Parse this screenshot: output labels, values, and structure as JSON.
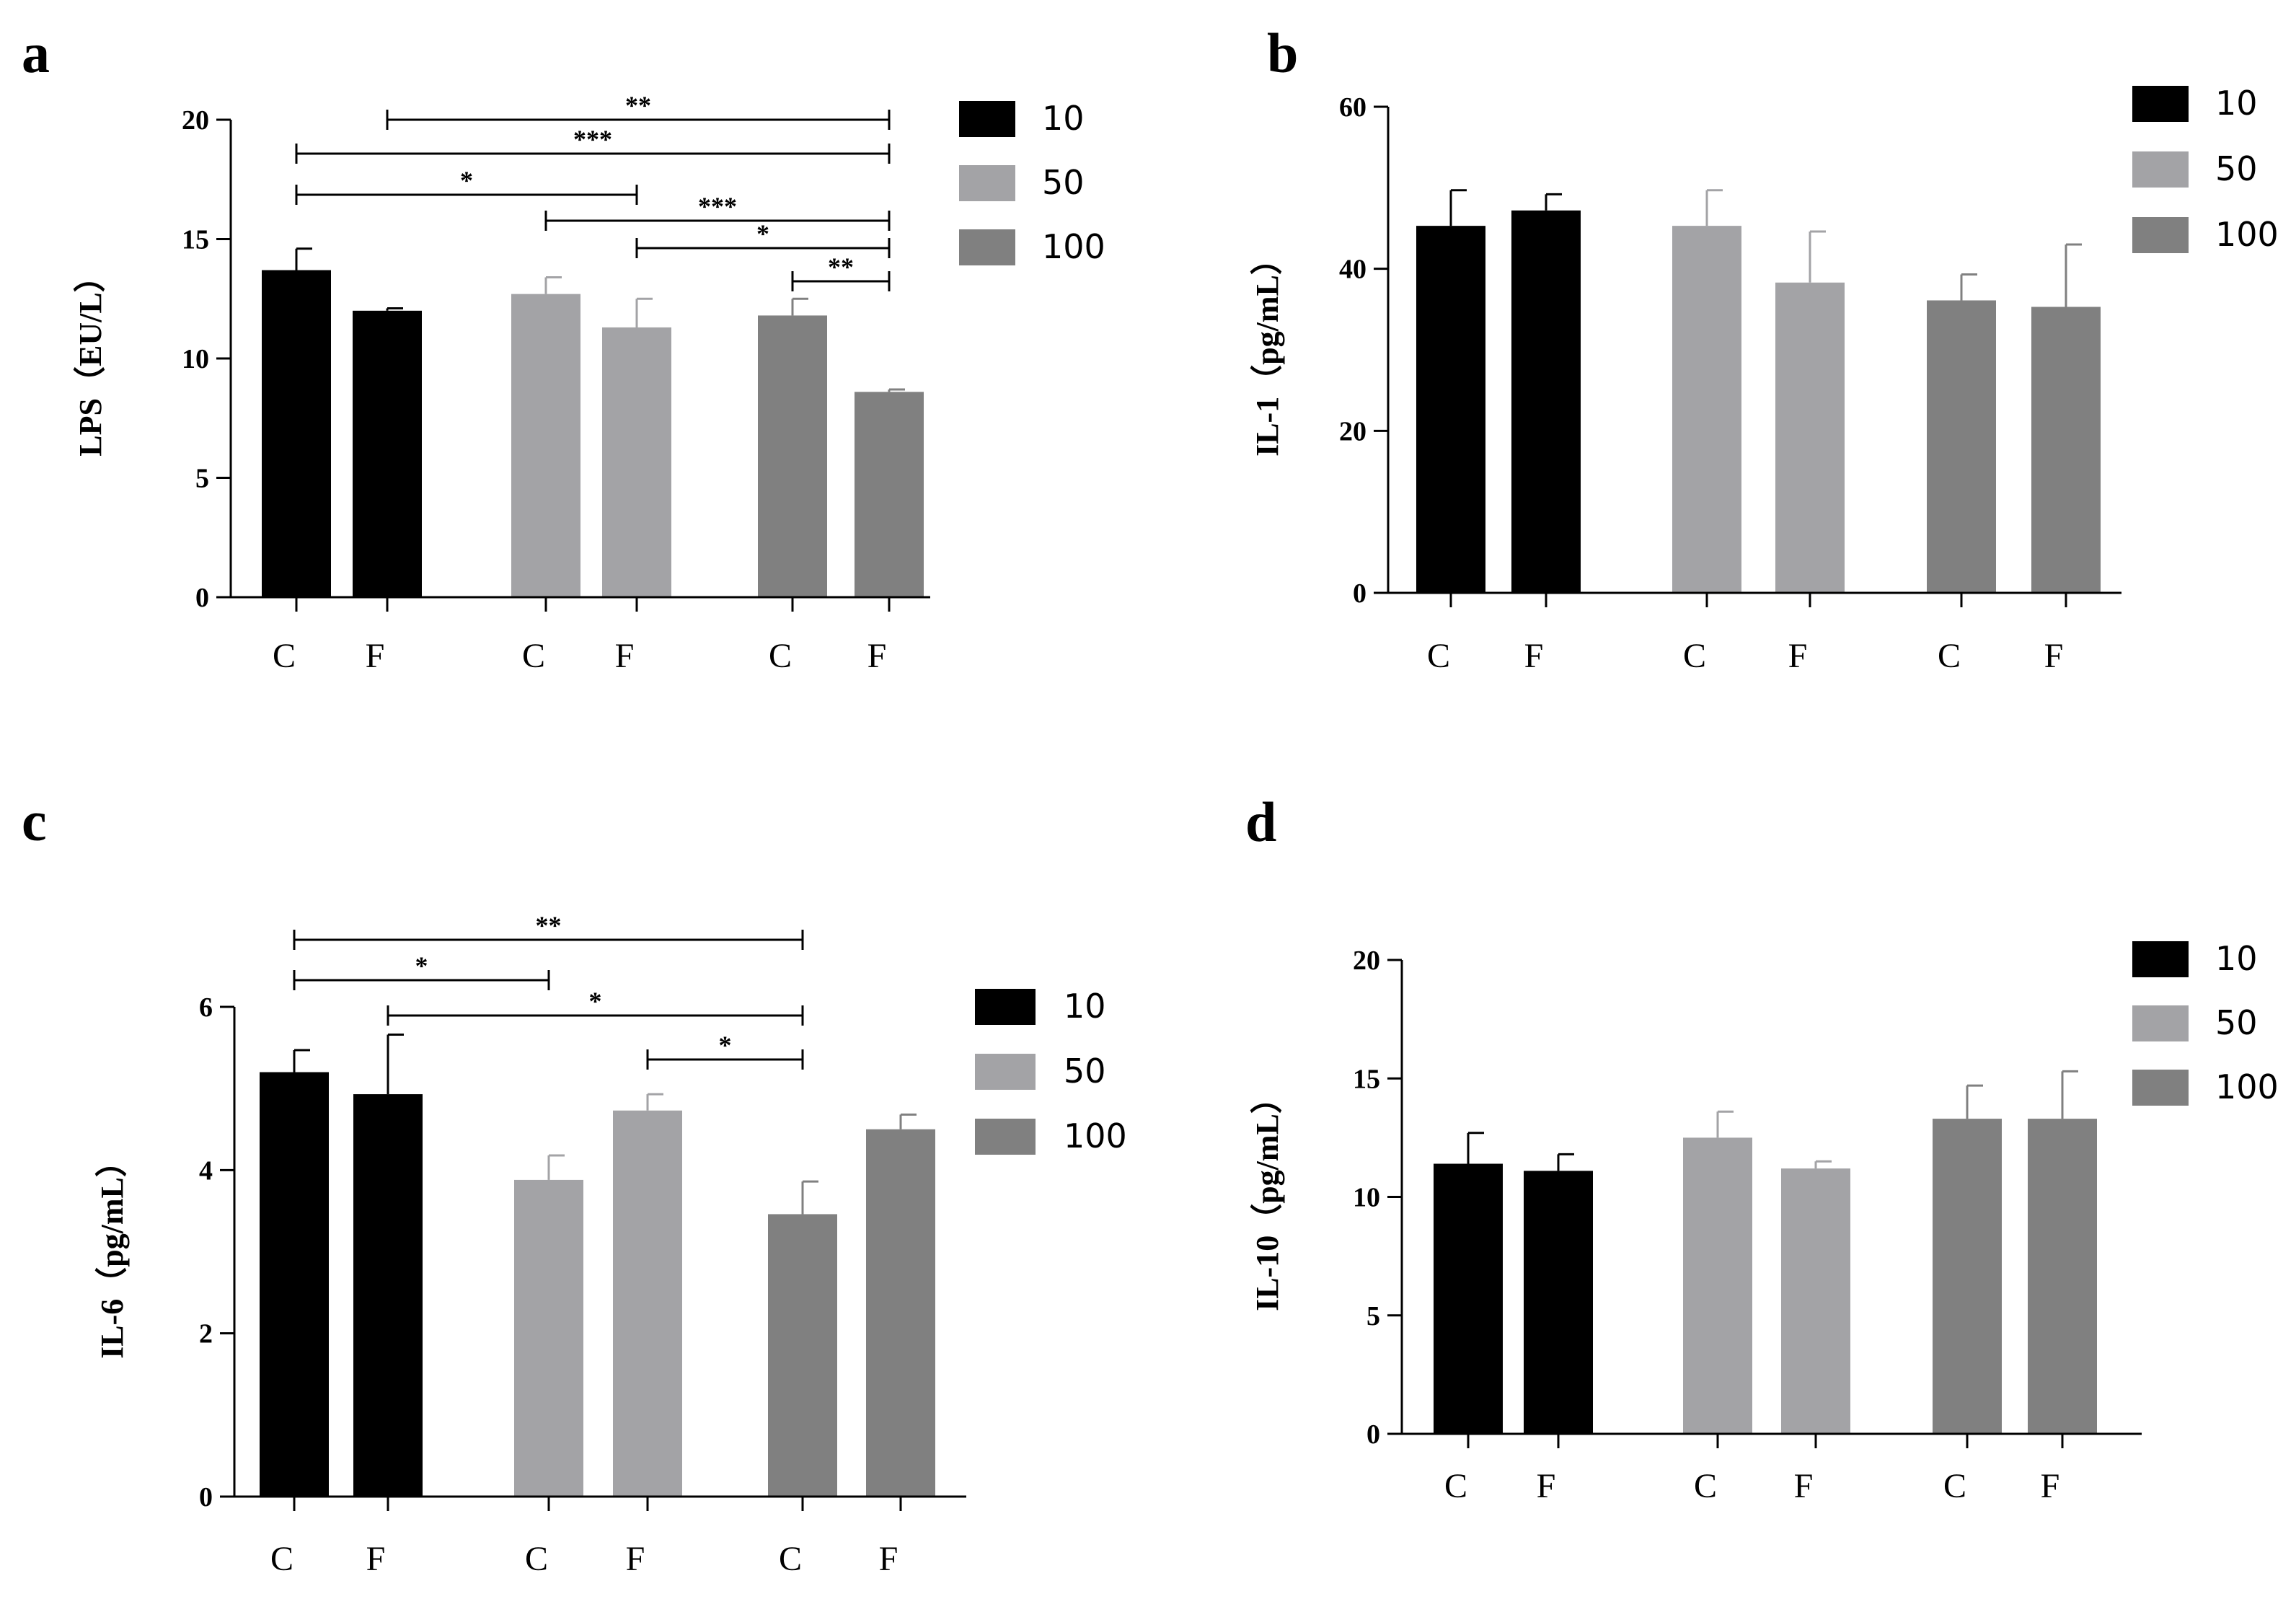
{
  "colors": {
    "10": "#000000",
    "50": "#a3a3a6",
    "100": "#808080",
    "axis": "#000000"
  },
  "chart_data": [
    {
      "id": "a",
      "type": "bar",
      "panel_letter": "a",
      "ylabel": "LPS（EU/L）",
      "ylim": [
        0,
        20
      ],
      "yticks": [
        "0",
        "5",
        "10",
        "15",
        "20"
      ],
      "categories": [
        "C",
        "F",
        "C",
        "F",
        "C",
        "F"
      ],
      "groups": [
        "10",
        "10",
        "50",
        "50",
        "100",
        "100"
      ],
      "values": [
        13.7,
        12.0,
        12.7,
        11.3,
        11.8,
        8.6
      ],
      "errors": [
        0.9,
        0.1,
        0.7,
        1.2,
        0.7,
        0.1
      ],
      "legend": [
        "10",
        "50",
        "100"
      ],
      "significance": [
        {
          "from": 1,
          "to": 5,
          "label": "**"
        },
        {
          "from": 0,
          "to": 5,
          "label": "***"
        },
        {
          "from": 0,
          "to": 3,
          "label": "*"
        },
        {
          "from": 2,
          "to": 5,
          "label": "***"
        },
        {
          "from": 3,
          "to": 5,
          "label": "*"
        },
        {
          "from": 4,
          "to": 5,
          "label": "**"
        }
      ]
    },
    {
      "id": "b",
      "type": "bar",
      "panel_letter": "b",
      "ylabel": "IL-1（pg/mL）",
      "ylim": [
        0,
        60
      ],
      "yticks": [
        "0",
        "20",
        "40",
        "60"
      ],
      "categories": [
        "C",
        "F",
        "C",
        "F",
        "C",
        "F"
      ],
      "groups": [
        "10",
        "10",
        "50",
        "50",
        "100",
        "100"
      ],
      "values": [
        45.3,
        47.2,
        45.3,
        38.3,
        36.1,
        35.3
      ],
      "errors": [
        4.4,
        2.0,
        4.4,
        6.3,
        3.2,
        7.7
      ],
      "legend": [
        "10",
        "50",
        "100"
      ],
      "significance": []
    },
    {
      "id": "c",
      "type": "bar",
      "panel_letter": "c",
      "ylabel": "IL-6（pg/mL）",
      "ylim": [
        0,
        6
      ],
      "yticks": [
        "0",
        "2",
        "4",
        "6"
      ],
      "categories": [
        "C",
        "F",
        "C",
        "F",
        "C",
        "F"
      ],
      "groups": [
        "10",
        "10",
        "50",
        "50",
        "100",
        "100"
      ],
      "values": [
        5.2,
        4.93,
        3.88,
        4.73,
        3.46,
        4.5
      ],
      "errors": [
        0.27,
        0.73,
        0.3,
        0.2,
        0.4,
        0.18
      ],
      "legend": [
        "10",
        "50",
        "100"
      ],
      "significance": [
        {
          "from": 0,
          "to": 4,
          "label": "**"
        },
        {
          "from": 0,
          "to": 2,
          "label": "*"
        },
        {
          "from": 1,
          "to": 4,
          "label": "*"
        },
        {
          "from": 3,
          "to": 4,
          "label": "*"
        }
      ]
    },
    {
      "id": "d",
      "type": "bar",
      "panel_letter": "d",
      "ylabel": "IL-10（pg/mL）",
      "ylim": [
        0,
        20
      ],
      "yticks": [
        "0",
        "5",
        "10",
        "15",
        "20"
      ],
      "categories": [
        "C",
        "F",
        "C",
        "F",
        "C",
        "F"
      ],
      "groups": [
        "10",
        "10",
        "50",
        "50",
        "100",
        "100"
      ],
      "values": [
        11.4,
        11.1,
        12.5,
        11.2,
        13.3,
        13.3
      ],
      "errors": [
        1.3,
        0.7,
        1.1,
        0.3,
        1.4,
        2.0
      ],
      "legend": [
        "10",
        "50",
        "100"
      ],
      "significance": []
    }
  ]
}
